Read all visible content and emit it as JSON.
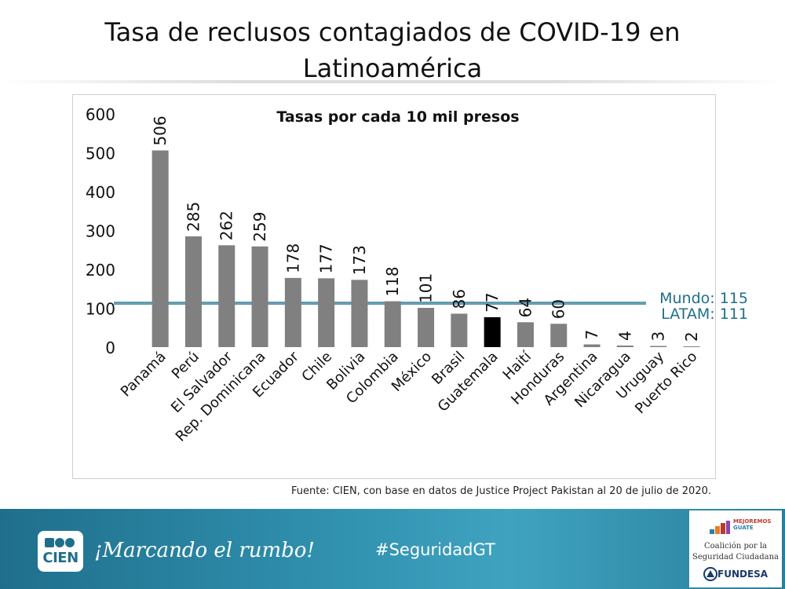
{
  "page": {
    "title_line1": "Tasa de reclusos contagiados de COVID-19 en",
    "title_line2": "Latinoamérica",
    "source_note": "Fuente: CIEN, con base en datos de Justice Project Pakistan al 20 de julio de 2020."
  },
  "footer": {
    "logo_text": "CIEN",
    "slogan": "¡Marcando el rumbo!",
    "hashtag": "#SeguridadGT",
    "partner_top1": "MEJOREMOS",
    "partner_top2": "GUATE",
    "partner_line1": "Coalición por la",
    "partner_line2": "Seguridad Ciudadana",
    "partner_bottom": "FUNDESA",
    "colors": {
      "band_dark": "#1f6f8c",
      "band_light": "#3fa3c0"
    }
  },
  "chart_data": {
    "type": "bar",
    "title": "Tasas por cada 10 mil presos",
    "xlabel": "",
    "ylabel": "",
    "ylim": [
      0,
      600
    ],
    "yticks": [
      0,
      100,
      200,
      300,
      400,
      500,
      600
    ],
    "grid": false,
    "categories": [
      "Panamá",
      "Perú",
      "El Salvador",
      "Rep. Dominicana",
      "Ecuador",
      "Chile",
      "Bolivia",
      "Colombia",
      "México",
      "Brasil",
      "Guatemala",
      "Haití",
      "Honduras",
      "Argentina",
      "Nicaragua",
      "Uruguay",
      "Puerto Rico"
    ],
    "values": [
      506,
      285,
      262,
      259,
      178,
      177,
      173,
      118,
      101,
      86,
      77,
      64,
      60,
      7,
      4,
      3,
      2
    ],
    "highlight_category": "Guatemala",
    "bar_color": "#808080",
    "highlight_color": "#000000",
    "reference_lines": [
      {
        "label": "Mundo: 115",
        "value": 115
      },
      {
        "label": "LATAM: 111",
        "value": 111
      }
    ],
    "reference_color": "#1f6f8c"
  }
}
